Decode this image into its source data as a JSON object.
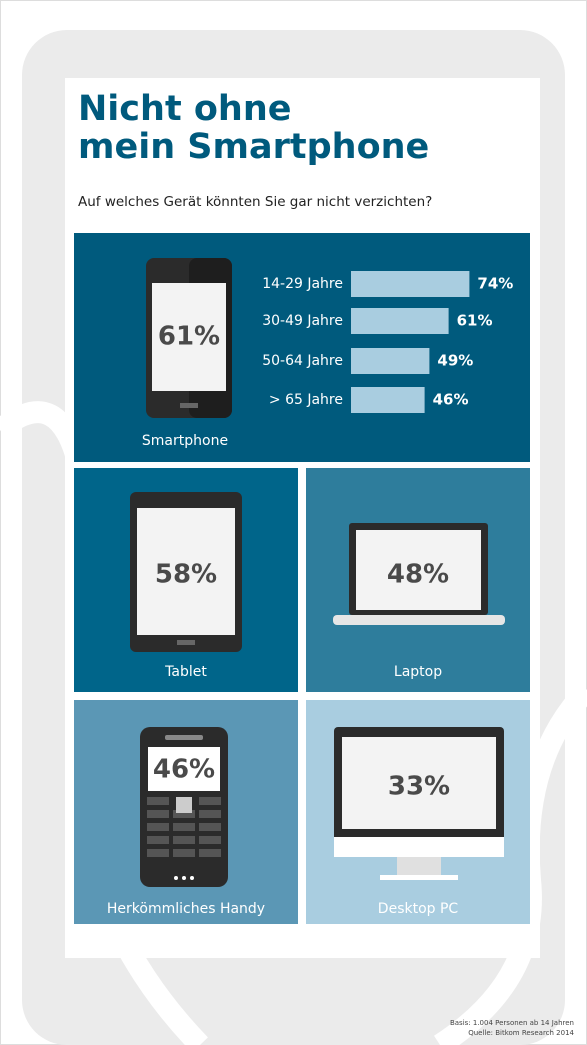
{
  "header": {
    "title": "Nicht ohne\nmein Smartphone",
    "subtitle": "Auf welches Gerät könnten Sie gar nicht verzichten?"
  },
  "chart_data": {
    "type": "bar",
    "categories": [
      "14-29 Jahre",
      "30-49 Jahre",
      "50-64 Jahre",
      "> 65 Jahre"
    ],
    "values": [
      74,
      61,
      49,
      46
    ],
    "value_labels": [
      "74%",
      "61%",
      "49%",
      "46%"
    ],
    "color": "#a9cde0"
  },
  "devices": [
    {
      "label": "Smartphone",
      "value": "61%"
    },
    {
      "label": "Tablet",
      "value": "58%"
    },
    {
      "label": "Laptop",
      "value": "48%"
    },
    {
      "label": "Herkömmliches Handy",
      "value": "46%"
    },
    {
      "label": "Desktop PC",
      "value": "33%"
    }
  ],
  "footer": {
    "basis": "Basis: 1.004 Personen ab 14 Jahren",
    "source": "Quelle: Bitkom Research 2014"
  }
}
